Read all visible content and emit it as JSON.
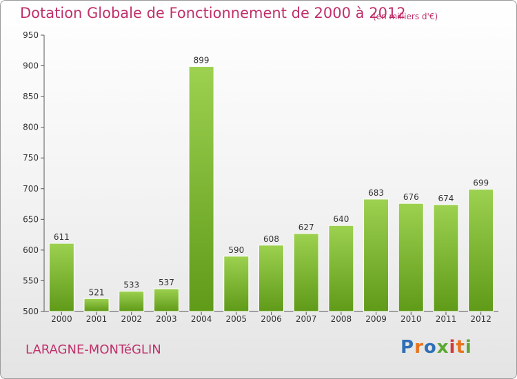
{
  "chart_data": {
    "type": "bar",
    "title": "Dotation Globale de Fonctionnement de 2000 à 2012",
    "subtitle": "(en milliers d'€)",
    "categories": [
      "2000",
      "2001",
      "2002",
      "2003",
      "2004",
      "2005",
      "2006",
      "2007",
      "2008",
      "2009",
      "2010",
      "2011",
      "2012"
    ],
    "values": [
      611,
      521,
      533,
      537,
      899,
      590,
      608,
      627,
      640,
      683,
      676,
      674,
      699
    ],
    "ylim": [
      500,
      950
    ],
    "yticks": [
      500,
      550,
      600,
      650,
      700,
      750,
      800,
      850,
      900,
      950
    ],
    "xlabel": "",
    "ylabel": "",
    "grid": false,
    "bar_color": "#7ab82a"
  },
  "footer": {
    "commune": "LARAGNE-MONTéGLIN",
    "logo_letters": [
      "P",
      "r",
      "o",
      "x",
      "i",
      "t",
      "i"
    ],
    "logo_colors": [
      "#2f6fb6",
      "#e8731c",
      "#2f6fb6",
      "#5aa832",
      "#d23a3a",
      "#e8731c",
      "#5aa832"
    ]
  }
}
